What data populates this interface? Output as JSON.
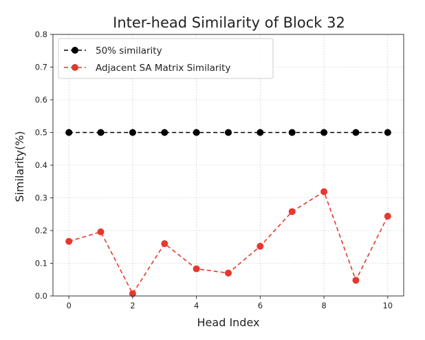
{
  "chart_data": {
    "type": "line",
    "title": "Inter-head Similarity of Block 32",
    "xlabel": "Head Index",
    "ylabel": "Similarity(%)",
    "x": [
      0,
      1,
      2,
      3,
      4,
      5,
      6,
      7,
      8,
      9,
      10
    ],
    "xlim": [
      -0.5,
      10.5
    ],
    "ylim": [
      0.0,
      0.8
    ],
    "xticks": [
      0,
      2,
      4,
      6,
      8,
      10
    ],
    "xtick_labels": [
      "0",
      "2",
      "4",
      "6",
      "8",
      "10"
    ],
    "yticks": [
      0.0,
      0.1,
      0.2,
      0.3,
      0.4,
      0.5,
      0.6,
      0.7,
      0.8
    ],
    "ytick_labels": [
      "0.0",
      "0.1",
      "0.2",
      "0.3",
      "0.4",
      "0.5",
      "0.6",
      "0.7",
      "0.8"
    ],
    "grid": true,
    "legend_position": "top-left",
    "series": [
      {
        "name": "50% similarity",
        "color": "#000000",
        "line_style": "dashed",
        "marker": "circle",
        "values": [
          0.5,
          0.5,
          0.5,
          0.5,
          0.5,
          0.5,
          0.5,
          0.5,
          0.5,
          0.5,
          0.5
        ]
      },
      {
        "name": "Adjacent SA Matrix Similarity",
        "color": "#e8372e",
        "line_style": "dashed",
        "marker": "circle",
        "values": [
          0.167,
          0.196,
          0.007,
          0.16,
          0.083,
          0.07,
          0.152,
          0.258,
          0.319,
          0.048,
          0.244
        ]
      }
    ]
  }
}
